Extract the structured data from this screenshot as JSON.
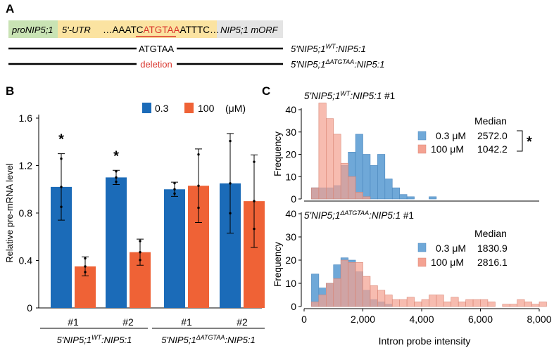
{
  "panel_a": {
    "label": "A",
    "segments": {
      "promoter": "proNIP5;1",
      "utr": "5'-UTR",
      "seq_prefix": "…AAATC",
      "seq_motif": "ATGTAA",
      "seq_suffix": "ATTTC…",
      "morf": "NIP5;1 mORF"
    },
    "constructs": [
      {
        "line_label": "ATGTAA",
        "base": "5'NIP5;1",
        "sup": "WT",
        "tail": ":NIP5:1"
      },
      {
        "line_label": "deletion",
        "base": "5'NIP5;1",
        "sup": "ΔATGTAA",
        "tail": ":NIP5:1"
      }
    ]
  },
  "panel_b": {
    "label": "B",
    "legend": {
      "low": "0.3",
      "high": "100",
      "unit": "(μM)"
    },
    "significance": "*",
    "group_labels": [
      {
        "base": "5'NIP5;1",
        "sup": "WT",
        "tail": ":NIP5:1"
      },
      {
        "base": "5'NIP5;1",
        "sup": "ΔATGTAA",
        "tail": ":NIP5:1"
      }
    ]
  },
  "panel_c": {
    "label": "C",
    "median_header": "Median",
    "top": {
      "base": "5'NIP5;1",
      "sup": "WT",
      "tail": ":NIP5:1",
      "rep": " #1",
      "low_label": "0.3 μM",
      "low_median": "2572.0",
      "high_label": "100 μM",
      "high_median": "1042.2",
      "sig": "*"
    },
    "bottom": {
      "base": "5'NIP5;1",
      "sup": "ΔATGTAA",
      "tail": ":NIP5:1",
      "rep": " #1",
      "low_label": "0.3 μM",
      "low_median": "1830.9",
      "high_label": "100 μM",
      "high_median": "2816.1"
    }
  },
  "colors": {
    "blue": "#1b6bb8",
    "orange": "#ef6236",
    "hist_blue": "#6fa8d8",
    "hist_salmon": "#f4a292",
    "promoter": "#c9e3b4",
    "utr": "#fbe3a1",
    "morf": "#e4e4e4",
    "motif": "#d9342b"
  },
  "chart_data": [
    {
      "type": "bar",
      "title": "",
      "ylabel": "Relative pre-mRNA level",
      "xlabel": "",
      "ylim": [
        0,
        1.6
      ],
      "yticks": [
        "0",
        "0.4",
        "0.8",
        "1.2",
        "1.6"
      ],
      "categories": [
        "#1",
        "#2",
        "#1",
        "#2"
      ],
      "series": [
        {
          "name": "0.3",
          "values": [
            1.02,
            1.1,
            1.0,
            1.05
          ],
          "err": [
            0.28,
            0.06,
            0.06,
            0.42
          ]
        },
        {
          "name": "100",
          "values": [
            0.35,
            0.47,
            1.03,
            0.9
          ],
          "err": [
            0.08,
            0.11,
            0.31,
            0.39
          ]
        }
      ],
      "significant_groups": [
        0,
        1
      ]
    },
    {
      "type": "histogram",
      "title": "5'NIP5;1 WT :NIP5:1 #1",
      "xlabel": "",
      "ylabel": "Frequency",
      "xlim": [
        0,
        8000
      ],
      "ylim": [
        0,
        40
      ],
      "yticks": [
        "0",
        "10",
        "20",
        "30",
        "40"
      ],
      "bin_width": 250,
      "bin_starts": [
        250,
        500,
        750,
        1000,
        1250,
        1500,
        1750,
        2000,
        2250,
        2500,
        2750,
        3000,
        3250,
        3500,
        4250
      ],
      "series": [
        {
          "name": "0.3 μM",
          "values": [
            5,
            5,
            5,
            6,
            15,
            21,
            29,
            20,
            15,
            20,
            9,
            5,
            2,
            1,
            1
          ]
        },
        {
          "name": "100 μM",
          "values": [
            5,
            43,
            36,
            29,
            16,
            10,
            3,
            1,
            0,
            0,
            0,
            0,
            0,
            0,
            0
          ]
        }
      ]
    },
    {
      "type": "histogram",
      "title": "5'NIP5;1 ΔATGTAA :NIP5:1 #1",
      "xlabel": "Intron probe intensity",
      "ylabel": "Frequency",
      "xlim": [
        0,
        8000
      ],
      "ylim": [
        0,
        40
      ],
      "xticks": [
        "0",
        "2,000",
        "4,000",
        "6,000",
        "8,000"
      ],
      "yticks": [
        "0",
        "10",
        "20",
        "30",
        "40"
      ],
      "bin_width": 250,
      "bin_starts": [
        250,
        500,
        750,
        1000,
        1250,
        1500,
        1750,
        2000,
        2250,
        2500,
        2750,
        3000,
        3250,
        3500,
        3750,
        4000,
        4250,
        4500,
        4750,
        5000,
        5250,
        5500,
        5750,
        6000,
        6250,
        6500,
        6750,
        7000,
        7250,
        7500,
        7750,
        8000
      ],
      "series": [
        {
          "name": "0.3 μM",
          "values": [
            14,
            8,
            10,
            18,
            21,
            20,
            15,
            7,
            3,
            2,
            1,
            0,
            0,
            0,
            0,
            0,
            0,
            0,
            0,
            0,
            0,
            0,
            0,
            0,
            0,
            0,
            0,
            0,
            0,
            0,
            0,
            0
          ]
        },
        {
          "name": "100 μM",
          "values": [
            2,
            5,
            10,
            12,
            20,
            19,
            19,
            13,
            9,
            7,
            5,
            3,
            3,
            4,
            2,
            3,
            5,
            5,
            2,
            4,
            2,
            3,
            3,
            3,
            2,
            0,
            1,
            1,
            3,
            2,
            1,
            2
          ]
        }
      ]
    }
  ]
}
